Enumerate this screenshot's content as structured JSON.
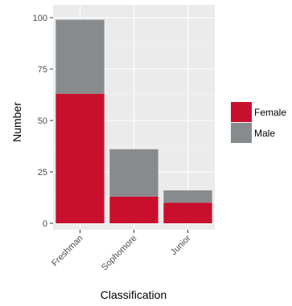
{
  "chart_data": {
    "type": "bar",
    "stacked": true,
    "categories": [
      "Freshman",
      "Sophomore",
      "Junior"
    ],
    "series": [
      {
        "name": "Female",
        "values": [
          63,
          13,
          10
        ],
        "color": "#C8102E"
      },
      {
        "name": "Male",
        "values": [
          36,
          23,
          6
        ],
        "color": "#888B8D"
      }
    ],
    "xlabel": "Classification",
    "ylabel": "Number",
    "ylim": [
      0,
      100
    ],
    "yticks": [
      0,
      25,
      50,
      75,
      100
    ],
    "grid": true,
    "legend": {
      "position": "right",
      "entries": [
        "Female",
        "Male"
      ]
    },
    "panel_background": "#EBEBEB"
  }
}
